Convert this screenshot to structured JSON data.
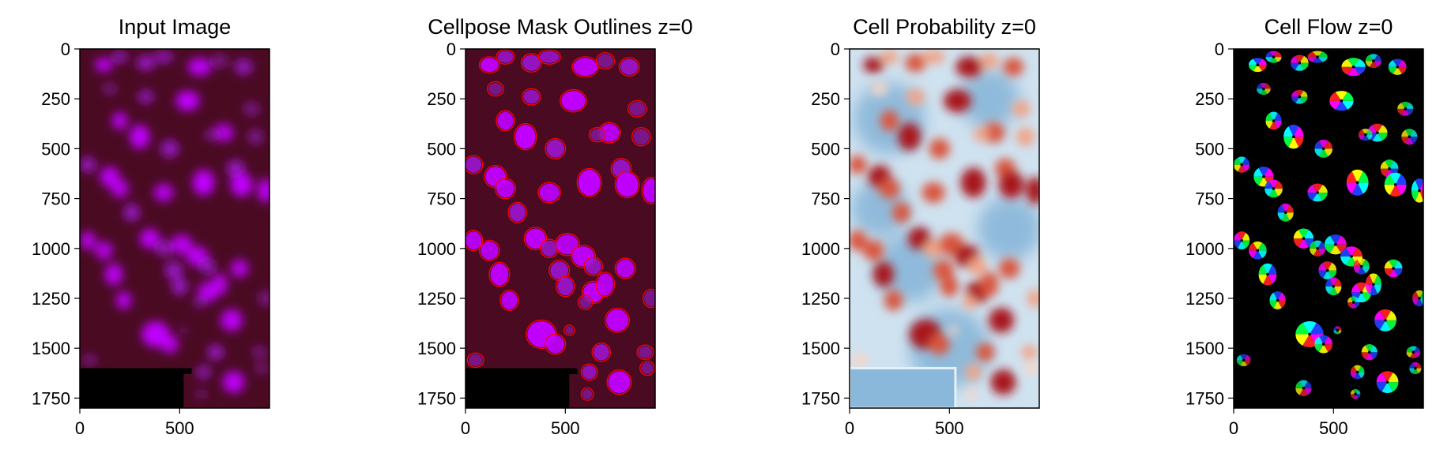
{
  "figure": {
    "panels": [
      {
        "id": "input",
        "title": "Input Image",
        "kind": "input"
      },
      {
        "id": "outlines",
        "title": "Cellpose Mask Outlines z=0",
        "kind": "outlines"
      },
      {
        "id": "prob",
        "title": "Cell Probability z=0",
        "kind": "prob"
      },
      {
        "id": "flow",
        "title": "Cell Flow z=0",
        "kind": "flow"
      }
    ]
  },
  "chart_data": [
    {
      "type": "heatmap",
      "title": "Input Image",
      "xlim": [
        0,
        950
      ],
      "ylim": [
        1800,
        0
      ],
      "xticks": [
        0,
        500
      ],
      "yticks": [
        0,
        250,
        500,
        750,
        1000,
        1250,
        1500,
        1750
      ]
    },
    {
      "type": "heatmap",
      "title": "Cellpose Mask Outlines z=0",
      "xlim": [
        0,
        950
      ],
      "ylim": [
        1800,
        0
      ],
      "xticks": [
        0,
        500
      ],
      "yticks": [
        0,
        250,
        500,
        750,
        1000,
        1250,
        1500,
        1750
      ],
      "outline_color": "#ff0000"
    },
    {
      "type": "heatmap",
      "title": "Cell Probability z=0",
      "xlim": [
        0,
        950
      ],
      "ylim": [
        1800,
        0
      ],
      "xticks": [
        0,
        500
      ],
      "yticks": [
        0,
        250,
        500,
        750,
        1000,
        1250,
        1500,
        1750
      ]
    },
    {
      "type": "heatmap",
      "title": "Cell Flow z=0",
      "xlim": [
        0,
        950
      ],
      "ylim": [
        1800,
        0
      ],
      "xticks": [
        0,
        500
      ],
      "yticks": [
        0,
        250,
        500,
        750,
        1000,
        1250,
        1500,
        1750
      ]
    }
  ],
  "cells": [
    [
      120,
      80,
      45,
      35,
      0.9
    ],
    [
      200,
      40,
      40,
      30,
      0.6
    ],
    [
      330,
      70,
      45,
      40,
      0.7
    ],
    [
      420,
      40,
      50,
      30,
      0.6
    ],
    [
      600,
      90,
      60,
      45,
      0.9
    ],
    [
      700,
      60,
      40,
      35,
      0.5
    ],
    [
      820,
      90,
      45,
      40,
      0.7
    ],
    [
      150,
      200,
      35,
      30,
      0.4
    ],
    [
      330,
      240,
      40,
      35,
      0.6
    ],
    [
      540,
      260,
      60,
      50,
      1.0
    ],
    [
      860,
      300,
      40,
      35,
      0.5
    ],
    [
      200,
      360,
      40,
      45,
      0.8
    ],
    [
      300,
      440,
      50,
      60,
      1.0
    ],
    [
      450,
      500,
      45,
      45,
      0.7
    ],
    [
      720,
      420,
      50,
      45,
      0.8
    ],
    [
      660,
      430,
      35,
      30,
      0.5
    ],
    [
      880,
      440,
      40,
      40,
      0.5
    ],
    [
      40,
      580,
      40,
      40,
      0.7
    ],
    [
      150,
      640,
      50,
      50,
      0.9
    ],
    [
      200,
      700,
      45,
      45,
      0.8
    ],
    [
      420,
      720,
      50,
      45,
      0.8
    ],
    [
      620,
      670,
      55,
      65,
      1.0
    ],
    [
      780,
      600,
      45,
      45,
      0.7
    ],
    [
      810,
      680,
      55,
      60,
      1.0
    ],
    [
      930,
      710,
      40,
      60,
      0.9
    ],
    [
      260,
      820,
      40,
      45,
      0.7
    ],
    [
      40,
      960,
      40,
      45,
      0.8
    ],
    [
      120,
      1010,
      45,
      45,
      0.8
    ],
    [
      350,
      950,
      50,
      50,
      0.9
    ],
    [
      420,
      1000,
      40,
      40,
      0.6
    ],
    [
      510,
      980,
      55,
      50,
      0.8
    ],
    [
      590,
      1040,
      55,
      50,
      0.9
    ],
    [
      470,
      1110,
      45,
      45,
      0.7
    ],
    [
      640,
      1090,
      40,
      40,
      0.6
    ],
    [
      800,
      1100,
      45,
      45,
      0.8
    ],
    [
      170,
      1130,
      45,
      55,
      0.9
    ],
    [
      220,
      1260,
      40,
      45,
      0.8
    ],
    [
      500,
      1190,
      40,
      45,
      0.7
    ],
    [
      640,
      1220,
      50,
      50,
      0.9
    ],
    [
      700,
      1180,
      40,
      55,
      0.8
    ],
    [
      600,
      1270,
      30,
      30,
      0.5
    ],
    [
      380,
      1430,
      70,
      65,
      1.0
    ],
    [
      450,
      1480,
      45,
      45,
      0.8
    ],
    [
      520,
      1410,
      20,
      20,
      0.4
    ],
    [
      760,
      1360,
      55,
      55,
      0.9
    ],
    [
      930,
      1250,
      35,
      40,
      0.5
    ],
    [
      680,
      1520,
      40,
      40,
      0.7
    ],
    [
      900,
      1520,
      35,
      30,
      0.5
    ],
    [
      50,
      1560,
      35,
      30,
      0.4
    ],
    [
      910,
      1600,
      30,
      30,
      0.4
    ],
    [
      770,
      1670,
      55,
      55,
      0.9
    ],
    [
      620,
      1620,
      35,
      35,
      0.6
    ],
    [
      610,
      1730,
      25,
      25,
      0.4
    ],
    [
      350,
      1700,
      40,
      40,
      0.5
    ]
  ]
}
